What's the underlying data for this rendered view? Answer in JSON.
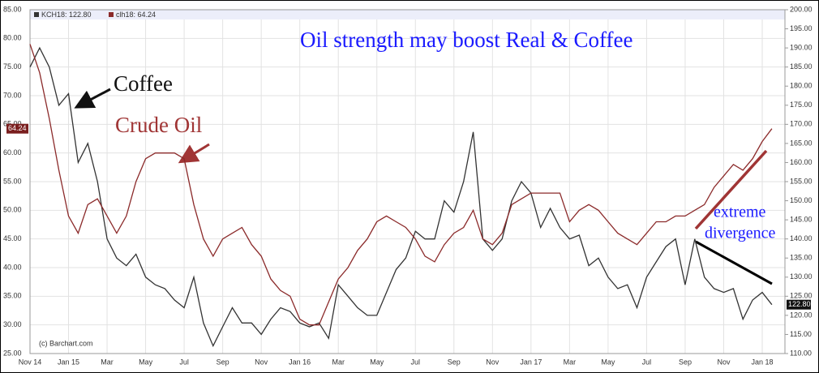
{
  "chart_data": {
    "type": "line",
    "title": "Oil strength may boost Real & Coffee",
    "annotations": [
      "Coffee",
      "Crude Oil",
      "extreme",
      "divergence",
      "(c) Barchart.com"
    ],
    "categories": [
      "Nov 14",
      null,
      null,
      null,
      "Jan 15",
      null,
      null,
      null,
      "Mar",
      null,
      null,
      null,
      "May",
      null,
      null,
      null,
      "Jul",
      null,
      null,
      null,
      "Sep",
      null,
      null,
      null,
      "Nov",
      null,
      null,
      null,
      "Jan 16",
      null,
      null,
      null,
      "Mar",
      null,
      null,
      null,
      "May",
      null,
      null,
      null,
      "Jul",
      null,
      null,
      null,
      "Sep",
      null,
      null,
      null,
      "Nov",
      null,
      null,
      null,
      "Jan 17",
      null,
      null,
      null,
      "Mar",
      null,
      null,
      null,
      "May",
      null,
      null,
      null,
      "Jul",
      null,
      null,
      null,
      "Sep",
      null,
      null,
      null,
      "Nov",
      null,
      null,
      null,
      "Jan 18",
      null
    ],
    "series": [
      {
        "name": "KCH18: 122.80",
        "marker_label": "122.80",
        "color": "#333333",
        "axis": "y2",
        "values": [
          185,
          190,
          185,
          175,
          178,
          160,
          165,
          155,
          140,
          135,
          133,
          136,
          130,
          128,
          127,
          124,
          122,
          130,
          118,
          112,
          117,
          122,
          118,
          118,
          115,
          119,
          122,
          121,
          118,
          117,
          118,
          114,
          128,
          125,
          122,
          120,
          120,
          126,
          132,
          135,
          142,
          140,
          140,
          150,
          147,
          155,
          168,
          140,
          137,
          140,
          150,
          155,
          152,
          143,
          148,
          143,
          140,
          141,
          133,
          135,
          130,
          127,
          128,
          122,
          130,
          134,
          138,
          140,
          128,
          140,
          130,
          127,
          126,
          127,
          119,
          124,
          126,
          122.8
        ]
      },
      {
        "name": "clh18: 64.24",
        "marker_label": "64.24",
        "color": "#8b2a2a",
        "values": [
          79,
          74,
          66,
          57,
          49,
          46,
          51,
          52,
          49,
          46,
          49,
          55,
          59,
          60,
          60,
          60,
          59,
          51,
          45,
          42,
          45,
          46,
          47,
          44,
          42,
          38,
          36,
          35,
          31,
          30,
          30,
          34,
          38,
          40,
          43,
          45,
          48,
          49,
          48,
          47,
          45,
          42,
          41,
          44,
          46,
          47,
          50,
          45,
          44,
          46,
          51,
          52,
          53,
          53,
          53,
          53,
          48,
          50,
          51,
          50,
          48,
          46,
          45,
          44,
          46,
          48,
          48,
          49,
          49,
          50,
          51,
          54,
          56,
          58,
          57,
          59,
          62,
          64.24
        ]
      }
    ],
    "ylim": [
      25,
      85
    ],
    "yticks": [
      {
        "value": 25,
        "label": "25.00"
      },
      {
        "value": 30,
        "label": "30.00"
      },
      {
        "value": 35,
        "label": "35.00"
      },
      {
        "value": 40,
        "label": "40.00"
      },
      {
        "value": 45,
        "label": "45.00"
      },
      {
        "value": 50,
        "label": "50.00"
      },
      {
        "value": 55,
        "label": "55.00"
      },
      {
        "value": 60,
        "label": "60.00"
      },
      {
        "value": 65,
        "label": "65.00"
      },
      {
        "value": 70,
        "label": "70.00"
      },
      {
        "value": 75,
        "label": "75.00"
      },
      {
        "value": 80,
        "label": "80.00"
      },
      {
        "value": 85,
        "label": "85.00"
      }
    ],
    "y2lim": [
      110,
      200
    ],
    "y2ticks": [
      {
        "value": 110,
        "label": "110.00"
      },
      {
        "value": 115,
        "label": "115.00"
      },
      {
        "value": 120,
        "label": "120.00"
      },
      {
        "value": 125,
        "label": "125.00"
      },
      {
        "value": 130,
        "label": "130.00"
      },
      {
        "value": 135,
        "label": "135.00"
      },
      {
        "value": 140,
        "label": "140.00"
      },
      {
        "value": 145,
        "label": "145.00"
      },
      {
        "value": 150,
        "label": "150.00"
      },
      {
        "value": 155,
        "label": "155.00"
      },
      {
        "value": 160,
        "label": "160.00"
      },
      {
        "value": 165,
        "label": "165.00"
      },
      {
        "value": 170,
        "label": "170.00"
      },
      {
        "value": 175,
        "label": "175.00"
      },
      {
        "value": 180,
        "label": "180.00"
      },
      {
        "value": 185,
        "label": "185.00"
      },
      {
        "value": 190,
        "label": "190.00"
      },
      {
        "value": 195,
        "label": "195.00"
      },
      {
        "value": 200,
        "label": "200.00"
      }
    ],
    "grid": true
  }
}
